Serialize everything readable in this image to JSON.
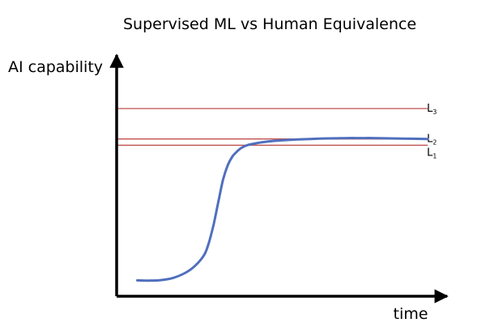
{
  "chart_data": {
    "type": "line",
    "title": "Supervised ML vs Human Equivalence",
    "xlabel": "time",
    "ylabel": "AI capability",
    "xlim": [
      0,
      100
    ],
    "ylim": [
      0,
      100
    ],
    "grid": false,
    "axis_ticks": false,
    "reference_lines": [
      {
        "name": "L",
        "sub": "3",
        "value": 84,
        "color": "#c0504d"
      },
      {
        "name": "L",
        "sub": "2",
        "value": 70.4,
        "color": "#c0504d"
      },
      {
        "name": "L",
        "sub": "1",
        "value": 67.6,
        "color": "#c0504d"
      }
    ],
    "series": [
      {
        "color": "#4f6fbe",
        "x": [
          6.6,
          10,
          14,
          18,
          22,
          25,
          28,
          29.5,
          31,
          32.5,
          34,
          35.5,
          37,
          38.5,
          40,
          42,
          45,
          48,
          51,
          54,
          58,
          62,
          66,
          70,
          74,
          78,
          82,
          86,
          90,
          94,
          99.5
        ],
        "y": [
          7.1,
          7.0,
          7.2,
          8.2,
          10.5,
          13.5,
          18.5,
          24,
          32,
          42,
          52,
          58.5,
          62.5,
          64.8,
          66.5,
          67.7,
          68.6,
          69.2,
          69.6,
          69.9,
          70.2,
          70.4,
          70.6,
          70.7,
          70.8,
          70.8,
          70.8,
          70.7,
          70.6,
          70.5,
          70.4
        ]
      }
    ]
  }
}
